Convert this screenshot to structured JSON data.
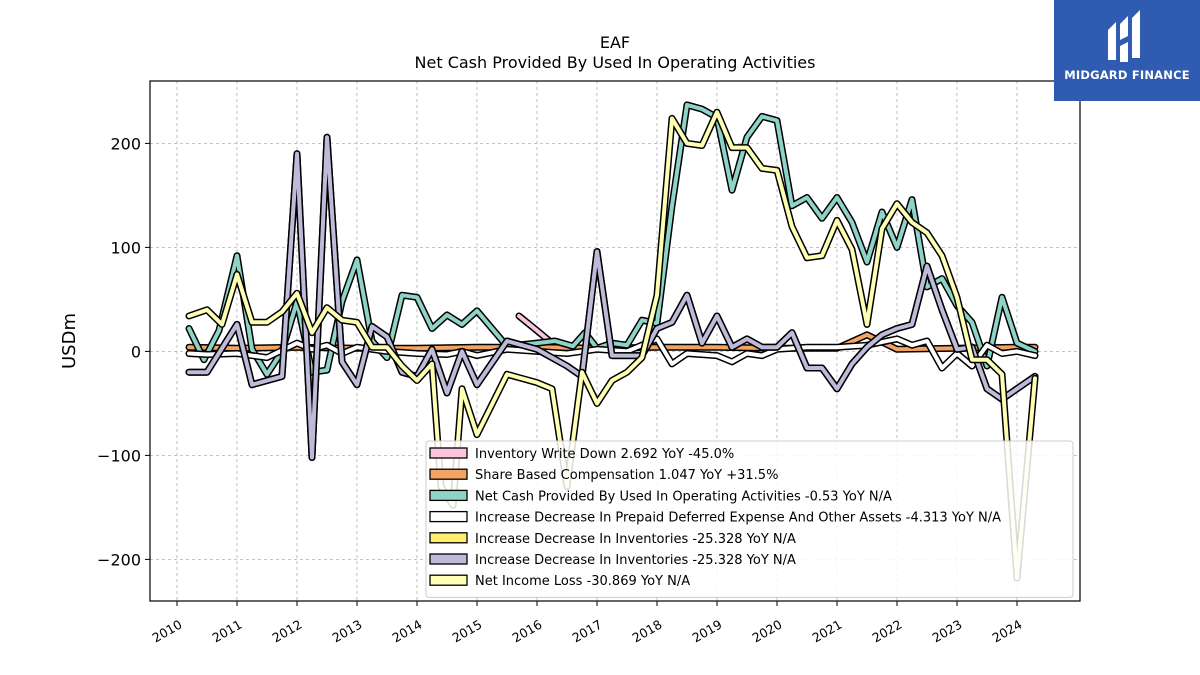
{
  "chart_data": {
    "type": "line",
    "title": "EAF",
    "subtitle": "Net Cash Provided By Used In Operating Activities",
    "ylabel": "USDm",
    "xlabel": "",
    "xlim": [
      2009.55,
      2025.05
    ],
    "ylim": [
      -240,
      260
    ],
    "yticks": [
      -200,
      -100,
      0,
      100,
      200
    ],
    "ytick_labels": [
      "−200",
      "−100",
      "0",
      "100",
      "200"
    ],
    "xticks": [
      2010,
      2011,
      2012,
      2013,
      2014,
      2015,
      2016,
      2017,
      2018,
      2019,
      2020,
      2021,
      2022,
      2023,
      2024
    ],
    "xtick_labels": [
      "2010",
      "2011",
      "2012",
      "2013",
      "2014",
      "2015",
      "2016",
      "2017",
      "2018",
      "2019",
      "2020",
      "2021",
      "2022",
      "2023",
      "2024"
    ],
    "grid": true,
    "legend_position": "lower-right",
    "series": [
      {
        "name": "Inventory Write Down  2.692 YoY -45.0%",
        "color": "#f9c5dd",
        "points": [
          [
            2015.7,
            34
          ],
          [
            2016.0,
            20
          ],
          [
            2016.25,
            8
          ]
        ]
      },
      {
        "name": "Share Based Compensation  1.047 YoY +31.5%",
        "color": "#f4a462",
        "points": [
          [
            2010.2,
            4
          ],
          [
            2011.0,
            3
          ],
          [
            2012.0,
            4
          ],
          [
            2013.0,
            3
          ],
          [
            2014.0,
            3
          ],
          [
            2015.0,
            4
          ],
          [
            2016.0,
            4
          ],
          [
            2017.0,
            3
          ],
          [
            2018.0,
            4
          ],
          [
            2019.0,
            4
          ],
          [
            2020.0,
            3
          ],
          [
            2021.0,
            3
          ],
          [
            2021.5,
            16
          ],
          [
            2022.0,
            2
          ],
          [
            2023.0,
            3
          ],
          [
            2024.0,
            4
          ],
          [
            2024.3,
            4
          ]
        ]
      },
      {
        "name": "Net Cash Provided By Used In Operating Activities  -0.53 YoY N/A",
        "color": "#8dd3c7",
        "points": [
          [
            2010.2,
            22
          ],
          [
            2010.45,
            -8
          ],
          [
            2010.7,
            20
          ],
          [
            2011.0,
            92
          ],
          [
            2011.25,
            2
          ],
          [
            2011.5,
            -22
          ],
          [
            2011.75,
            0
          ],
          [
            2012.0,
            48
          ],
          [
            2012.25,
            -20
          ],
          [
            2012.5,
            -18
          ],
          [
            2012.75,
            48
          ],
          [
            2013.0,
            88
          ],
          [
            2013.25,
            10
          ],
          [
            2013.5,
            -6
          ],
          [
            2013.75,
            54
          ],
          [
            2014.0,
            52
          ],
          [
            2014.25,
            22
          ],
          [
            2014.5,
            35
          ],
          [
            2014.75,
            26
          ],
          [
            2015.0,
            39
          ],
          [
            2015.25,
            22
          ],
          [
            2015.5,
            5
          ],
          [
            2016.0,
            8
          ],
          [
            2016.3,
            10
          ],
          [
            2016.6,
            5
          ],
          [
            2016.8,
            18
          ],
          [
            2017.0,
            3
          ],
          [
            2017.25,
            8
          ],
          [
            2017.5,
            6
          ],
          [
            2017.75,
            30
          ],
          [
            2018.0,
            27
          ],
          [
            2018.25,
            140
          ],
          [
            2018.5,
            237
          ],
          [
            2018.75,
            233
          ],
          [
            2019.0,
            225
          ],
          [
            2019.25,
            155
          ],
          [
            2019.5,
            206
          ],
          [
            2019.75,
            226
          ],
          [
            2020.0,
            222
          ],
          [
            2020.25,
            140
          ],
          [
            2020.5,
            148
          ],
          [
            2020.75,
            128
          ],
          [
            2021.0,
            148
          ],
          [
            2021.25,
            124
          ],
          [
            2021.5,
            86
          ],
          [
            2021.75,
            134
          ],
          [
            2022.0,
            100
          ],
          [
            2022.25,
            146
          ],
          [
            2022.5,
            62
          ],
          [
            2022.75,
            70
          ],
          [
            2023.0,
            44
          ],
          [
            2023.25,
            28
          ],
          [
            2023.5,
            -14
          ],
          [
            2023.75,
            52
          ],
          [
            2024.0,
            8
          ],
          [
            2024.3,
            0
          ]
        ]
      },
      {
        "name": "Increase Decrease In Prepaid Deferred Expense And Other Assets  -4.313 YoY N/A",
        "color": "#ffffff",
        "points": [
          [
            2010.2,
            -2
          ],
          [
            2010.5,
            -3
          ],
          [
            2011.0,
            -2
          ],
          [
            2011.5,
            -6
          ],
          [
            2012.0,
            8
          ],
          [
            2012.25,
            2
          ],
          [
            2012.5,
            6
          ],
          [
            2012.75,
            -2
          ],
          [
            2013.0,
            4
          ],
          [
            2013.5,
            0
          ],
          [
            2014.0,
            -2
          ],
          [
            2014.5,
            -3
          ],
          [
            2014.75,
            0
          ],
          [
            2015.0,
            -4
          ],
          [
            2015.5,
            2
          ],
          [
            2016.0,
            0
          ],
          [
            2016.5,
            -2
          ],
          [
            2017.0,
            2
          ],
          [
            2017.5,
            0
          ],
          [
            2018.0,
            12
          ],
          [
            2018.25,
            -12
          ],
          [
            2018.5,
            -2
          ],
          [
            2019.0,
            -4
          ],
          [
            2019.25,
            -10
          ],
          [
            2019.5,
            -2
          ],
          [
            2019.75,
            -4
          ],
          [
            2020.0,
            2
          ],
          [
            2020.5,
            4
          ],
          [
            2021.0,
            4
          ],
          [
            2021.5,
            6
          ],
          [
            2022.0,
            12
          ],
          [
            2022.25,
            6
          ],
          [
            2022.5,
            10
          ],
          [
            2022.75,
            -16
          ],
          [
            2023.0,
            -2
          ],
          [
            2023.25,
            -14
          ],
          [
            2023.5,
            6
          ],
          [
            2023.75,
            -2
          ],
          [
            2024.0,
            0
          ],
          [
            2024.3,
            -4
          ]
        ]
      },
      {
        "name": "Increase Decrease In Inventories  -25.328 YoY N/A",
        "color": "#ffed6f",
        "points": [
          [
            2010.2,
            -20
          ],
          [
            2010.5,
            -20
          ],
          [
            2011.0,
            26
          ],
          [
            2011.25,
            -32
          ],
          [
            2011.75,
            -24
          ],
          [
            2012.0,
            190
          ],
          [
            2012.25,
            -102
          ],
          [
            2012.5,
            206
          ],
          [
            2012.75,
            -10
          ],
          [
            2013.0,
            -32
          ],
          [
            2013.25,
            24
          ],
          [
            2013.5,
            14
          ],
          [
            2013.75,
            -20
          ],
          [
            2014.0,
            -24
          ],
          [
            2014.25,
            2
          ],
          [
            2014.5,
            -40
          ],
          [
            2014.75,
            0
          ],
          [
            2015.0,
            -32
          ],
          [
            2015.5,
            10
          ],
          [
            2016.0,
            2
          ],
          [
            2016.5,
            -14
          ],
          [
            2016.75,
            -24
          ],
          [
            2017.0,
            96
          ],
          [
            2017.25,
            -4
          ],
          [
            2017.75,
            -4
          ],
          [
            2018.0,
            22
          ],
          [
            2018.25,
            28
          ],
          [
            2018.5,
            54
          ],
          [
            2018.75,
            8
          ],
          [
            2019.0,
            34
          ],
          [
            2019.25,
            4
          ],
          [
            2019.5,
            12
          ],
          [
            2019.75,
            4
          ],
          [
            2020.0,
            4
          ],
          [
            2020.25,
            18
          ],
          [
            2020.5,
            -16
          ],
          [
            2020.75,
            -16
          ],
          [
            2021.0,
            -36
          ],
          [
            2021.25,
            -12
          ],
          [
            2021.5,
            4
          ],
          [
            2021.75,
            16
          ],
          [
            2022.0,
            22
          ],
          [
            2022.25,
            26
          ],
          [
            2022.5,
            82
          ],
          [
            2022.75,
            40
          ],
          [
            2023.0,
            2
          ],
          [
            2023.25,
            4
          ],
          [
            2023.5,
            -36
          ],
          [
            2023.75,
            -46
          ],
          [
            2024.0,
            -36
          ],
          [
            2024.3,
            -24
          ]
        ]
      },
      {
        "name": "Increase Decrease In Inventories  -25.328 YoY N/A",
        "color": "#bebada",
        "points": [
          [
            2010.2,
            -20
          ],
          [
            2010.5,
            -20
          ],
          [
            2011.0,
            26
          ],
          [
            2011.25,
            -32
          ],
          [
            2011.75,
            -24
          ],
          [
            2012.0,
            190
          ],
          [
            2012.25,
            -102
          ],
          [
            2012.5,
            206
          ],
          [
            2012.75,
            -10
          ],
          [
            2013.0,
            -32
          ],
          [
            2013.25,
            24
          ],
          [
            2013.5,
            14
          ],
          [
            2013.75,
            -20
          ],
          [
            2014.0,
            -24
          ],
          [
            2014.25,
            2
          ],
          [
            2014.5,
            -40
          ],
          [
            2014.75,
            0
          ],
          [
            2015.0,
            -32
          ],
          [
            2015.5,
            10
          ],
          [
            2016.0,
            2
          ],
          [
            2016.5,
            -14
          ],
          [
            2016.75,
            -24
          ],
          [
            2017.0,
            96
          ],
          [
            2017.25,
            -4
          ],
          [
            2017.75,
            -4
          ],
          [
            2018.0,
            22
          ],
          [
            2018.25,
            28
          ],
          [
            2018.5,
            54
          ],
          [
            2018.75,
            8
          ],
          [
            2019.0,
            34
          ],
          [
            2019.25,
            4
          ],
          [
            2019.5,
            12
          ],
          [
            2019.75,
            4
          ],
          [
            2020.0,
            4
          ],
          [
            2020.25,
            18
          ],
          [
            2020.5,
            -16
          ],
          [
            2020.75,
            -16
          ],
          [
            2021.0,
            -36
          ],
          [
            2021.25,
            -12
          ],
          [
            2021.5,
            4
          ],
          [
            2021.75,
            16
          ],
          [
            2022.0,
            22
          ],
          [
            2022.25,
            26
          ],
          [
            2022.5,
            82
          ],
          [
            2022.75,
            40
          ],
          [
            2023.0,
            2
          ],
          [
            2023.25,
            4
          ],
          [
            2023.5,
            -36
          ],
          [
            2023.75,
            -46
          ],
          [
            2024.0,
            -36
          ],
          [
            2024.3,
            -24
          ]
        ]
      },
      {
        "name": "Net Income Loss  -30.869 YoY N/A",
        "color": "#ffffb3",
        "points": [
          [
            2010.2,
            34
          ],
          [
            2010.5,
            40
          ],
          [
            2010.75,
            26
          ],
          [
            2011.0,
            74
          ],
          [
            2011.25,
            28
          ],
          [
            2011.5,
            28
          ],
          [
            2011.75,
            38
          ],
          [
            2012.0,
            56
          ],
          [
            2012.25,
            18
          ],
          [
            2012.5,
            42
          ],
          [
            2012.75,
            30
          ],
          [
            2013.0,
            28
          ],
          [
            2013.25,
            4
          ],
          [
            2013.5,
            4
          ],
          [
            2013.75,
            -14
          ],
          [
            2014.0,
            -28
          ],
          [
            2014.25,
            -12
          ],
          [
            2014.4,
            -130
          ],
          [
            2014.6,
            -148
          ],
          [
            2014.75,
            -36
          ],
          [
            2015.0,
            -80
          ],
          [
            2015.5,
            -22
          ],
          [
            2016.0,
            -30
          ],
          [
            2016.25,
            -36
          ],
          [
            2016.5,
            -130
          ],
          [
            2016.75,
            -20
          ],
          [
            2017.0,
            -50
          ],
          [
            2017.25,
            -28
          ],
          [
            2017.5,
            -20
          ],
          [
            2017.75,
            -6
          ],
          [
            2018.0,
            54
          ],
          [
            2018.25,
            224
          ],
          [
            2018.5,
            200
          ],
          [
            2018.75,
            198
          ],
          [
            2019.0,
            230
          ],
          [
            2019.25,
            196
          ],
          [
            2019.5,
            196
          ],
          [
            2019.75,
            176
          ],
          [
            2020.0,
            174
          ],
          [
            2020.25,
            120
          ],
          [
            2020.5,
            90
          ],
          [
            2020.75,
            92
          ],
          [
            2021.0,
            126
          ],
          [
            2021.25,
            98
          ],
          [
            2021.5,
            26
          ],
          [
            2021.75,
            118
          ],
          [
            2022.0,
            142
          ],
          [
            2022.25,
            124
          ],
          [
            2022.5,
            114
          ],
          [
            2022.75,
            92
          ],
          [
            2023.0,
            52
          ],
          [
            2023.25,
            -8
          ],
          [
            2023.5,
            -8
          ],
          [
            2023.75,
            -22
          ],
          [
            2024.0,
            -218
          ],
          [
            2024.3,
            -26
          ]
        ]
      }
    ]
  },
  "logo": {
    "text": "MIDGARD FINANCE",
    "background": "#2f5bb0"
  }
}
